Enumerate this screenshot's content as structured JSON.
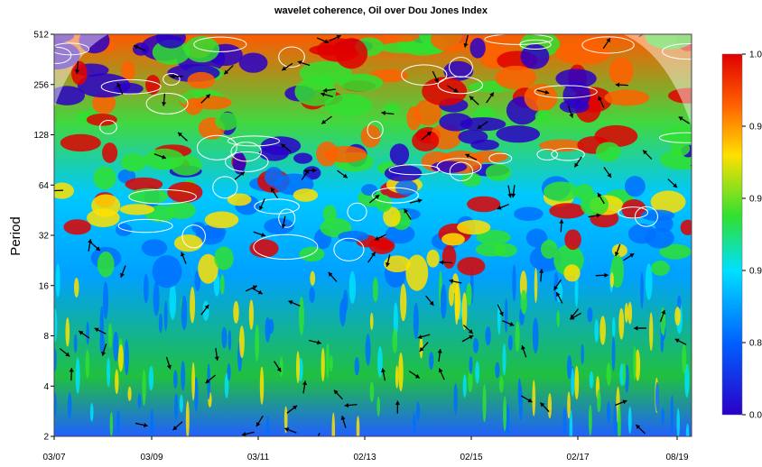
{
  "chart_data": {
    "type": "heatmap",
    "title": "wavelet coherence, Oil over Dou Jones Index",
    "ylabel": "Period",
    "xlabel": "",
    "y_scale": "log2",
    "ylim": [
      2,
      512
    ],
    "y_ticks": [
      "2",
      "4",
      "8",
      "16",
      "32",
      "64",
      "128",
      "256",
      "512"
    ],
    "x_ticks": [
      "03/07",
      "03/09",
      "03/11",
      "02/13",
      "02/15",
      "02/17",
      "08/19"
    ],
    "colorbar": {
      "ticks": [
        "0.000",
        "0.805",
        "0.920",
        "0.965",
        "0.987",
        "1.000"
      ],
      "colors": [
        "#2a00c8",
        "#0070ff",
        "#00e0ff",
        "#30e030",
        "#ffe000",
        "#ff6000",
        "#e00000"
      ]
    },
    "annotations": {
      "arrows": "phase arrows",
      "contours": "significance contours (white)",
      "cone_of_influence": "pale shaded region outside cone"
    }
  }
}
